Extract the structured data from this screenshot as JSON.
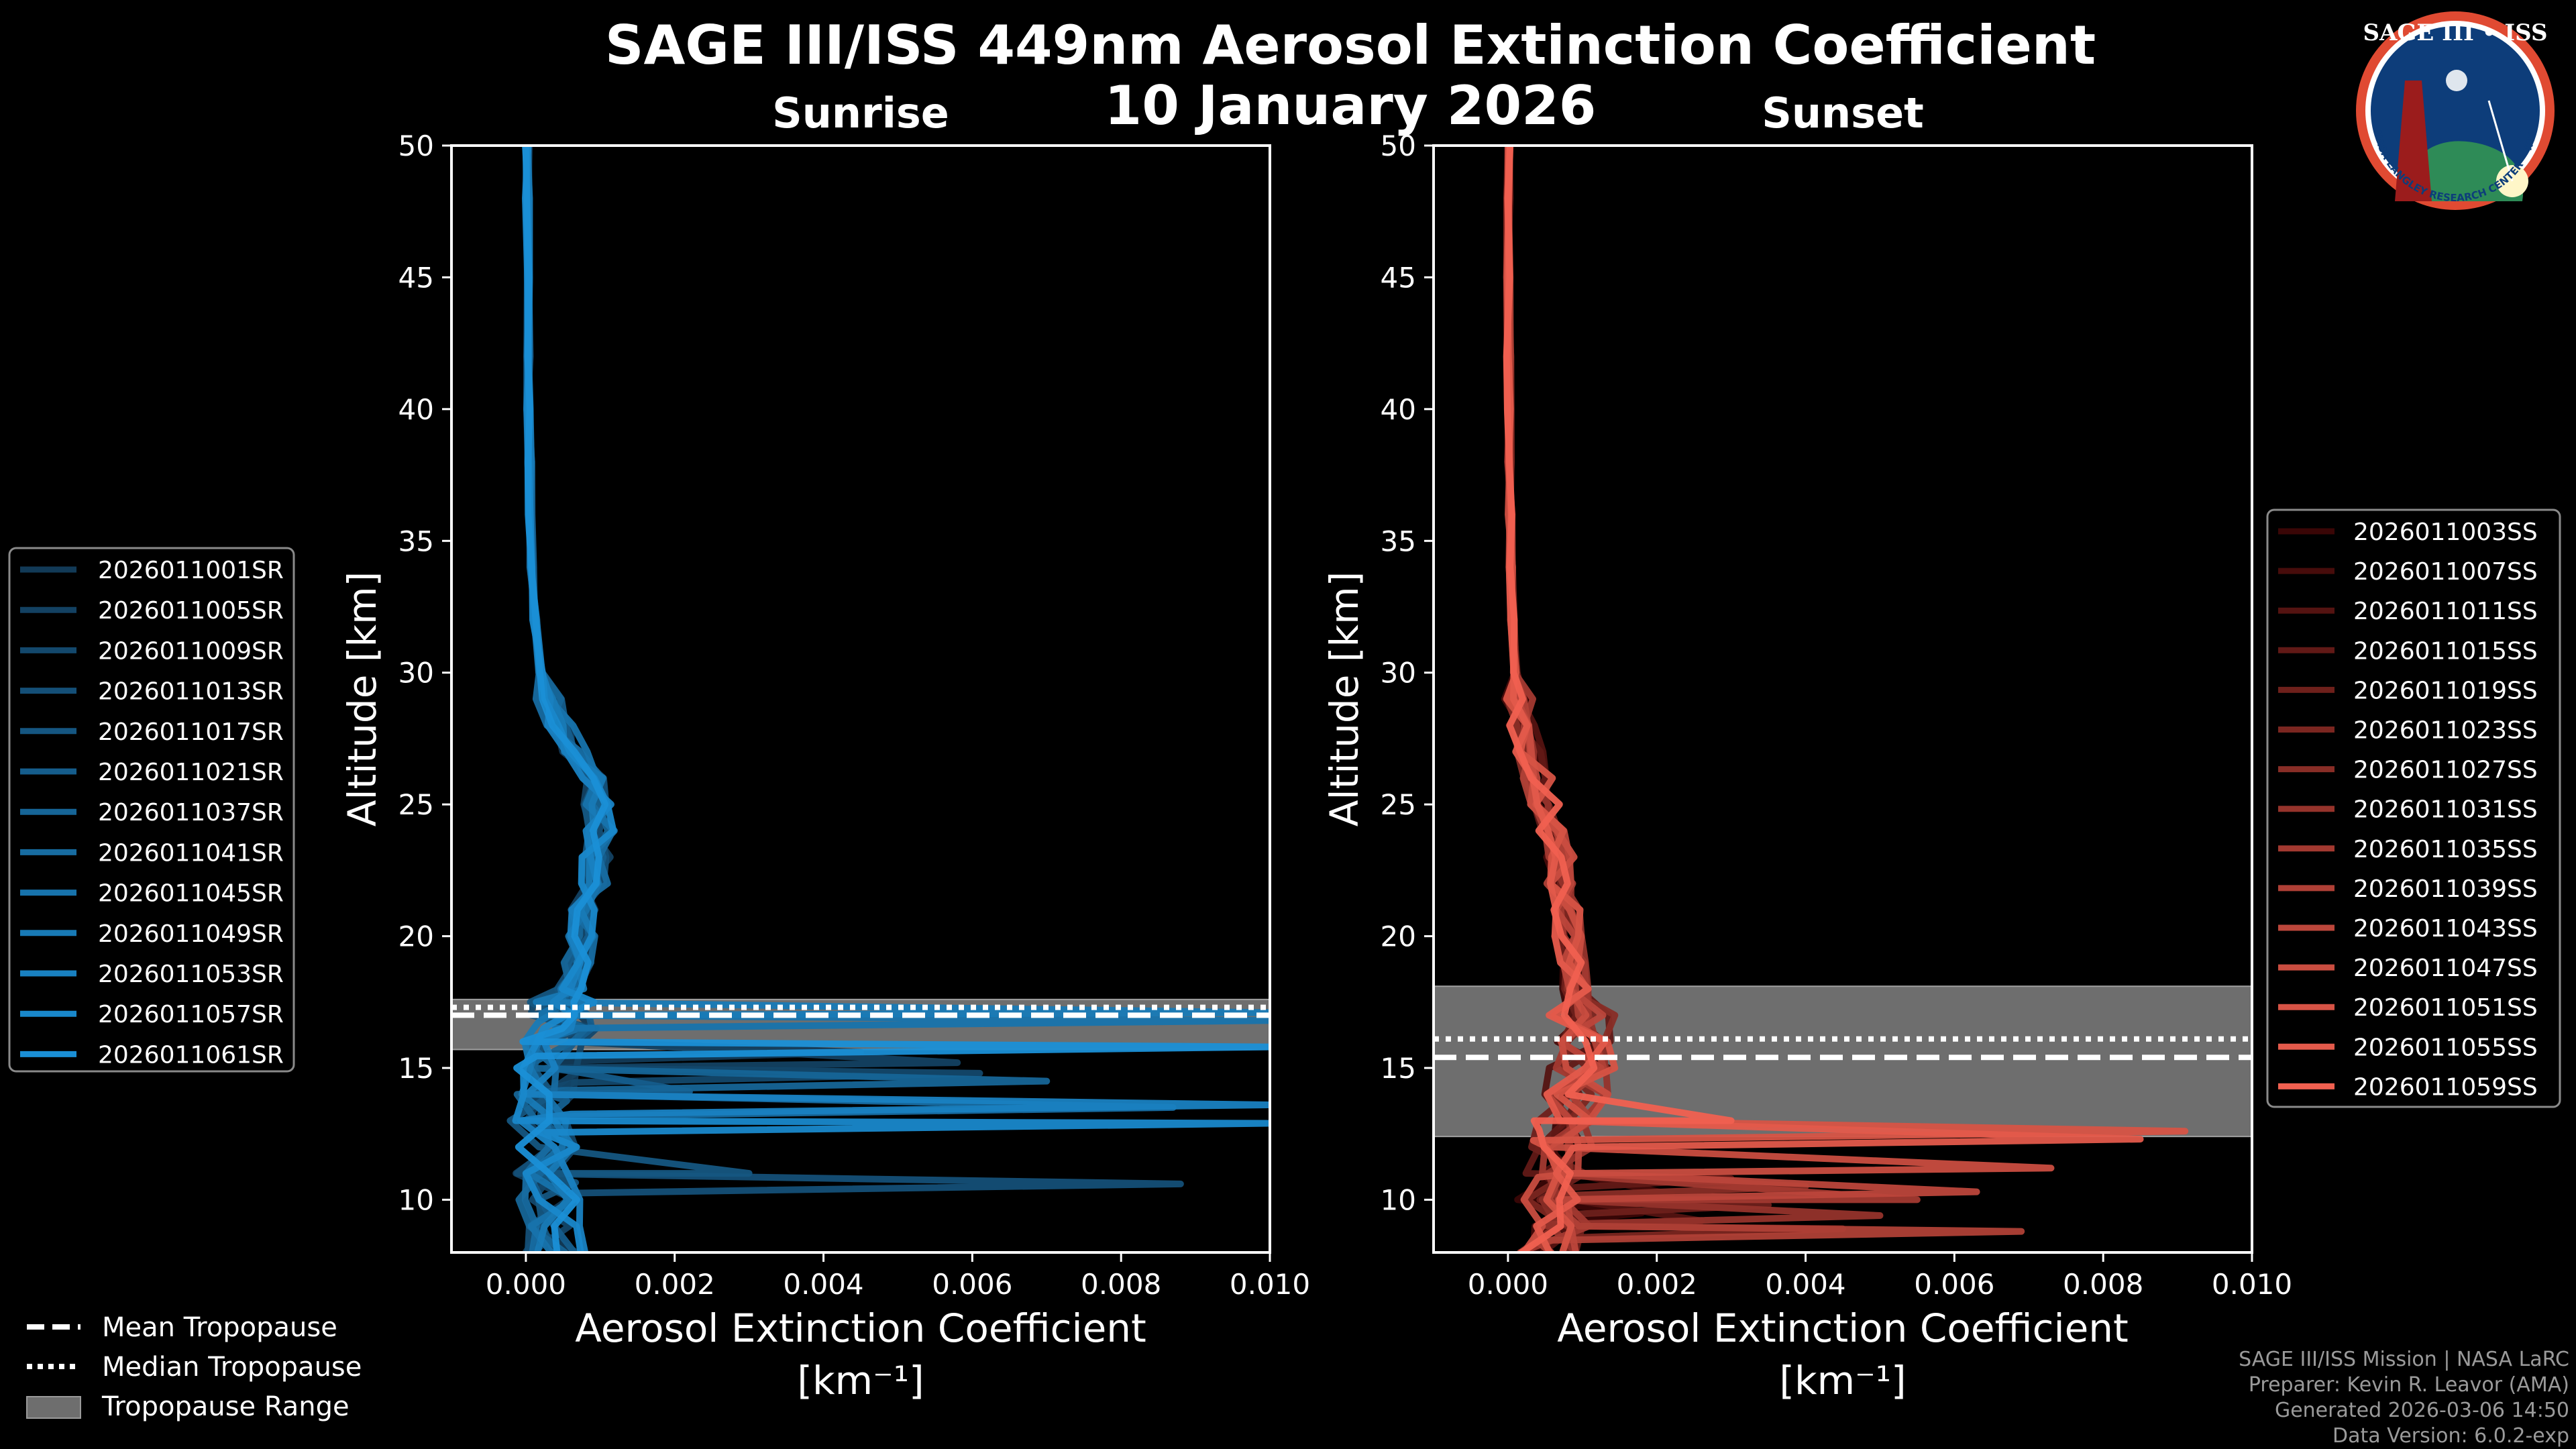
{
  "title": "SAGE III/ISS 449nm Aerosol Extinction Coefficient",
  "date": "10 January 2026",
  "logo": {
    "text": "SAGE III • ISS",
    "ring_text": "BALL • NASA LANGLEY RESEARCH CENTER • TAS-I • ESA",
    "colors": {
      "ring": "#e04a32",
      "field": "#0d3d7a",
      "earth": "#2e8b57"
    }
  },
  "footer": {
    "line1": "SAGE III/ISS Mission | NASA LaRC",
    "line2": "Preparer: Kevin R. Leavor (AMA)",
    "line3": "Generated 2026-03-06 14:50",
    "line4": "Data Version: 6.0.2-exp"
  },
  "tropopause_legend": {
    "mean": "Mean Tropopause",
    "median": "Median Tropopause",
    "range": "Tropopause Range"
  },
  "colors": {
    "sunrise_light": "#1a8fd6",
    "sunrise_dark": "#123a57",
    "sunset_light": "#f06050",
    "sunset_dark": "#3a0606",
    "band": "#6e6e6e"
  },
  "chart_data": [
    {
      "type": "line",
      "panel": "sunrise",
      "title": "Sunrise",
      "xlabel": "Aerosol Extinction Coefficient",
      "xunit": "[km⁻¹]",
      "ylabel": "Altitude [km]",
      "xlim": [
        -0.001,
        0.01
      ],
      "ylim": [
        8,
        50
      ],
      "xticks": [
        0.0,
        0.002,
        0.004,
        0.006,
        0.008,
        0.01
      ],
      "xtick_labels": [
        "0.000",
        "0.002",
        "0.004",
        "0.006",
        "0.008",
        "0.010"
      ],
      "yticks": [
        10,
        15,
        20,
        25,
        30,
        35,
        40,
        45,
        50
      ],
      "ytick_labels": [
        "10",
        "15",
        "20",
        "25",
        "30",
        "35",
        "40",
        "45",
        "50"
      ],
      "legend_position": "left",
      "tropopause": {
        "mean_km": 17.0,
        "median_km": 17.3,
        "range_km": [
          15.7,
          17.6
        ]
      },
      "base_profile": {
        "altitude_km": [
          8,
          9,
          10,
          11,
          12,
          13,
          14,
          15,
          16,
          16.5,
          17,
          17.5,
          18,
          19,
          20,
          21,
          22,
          23,
          24,
          25,
          26,
          27,
          28,
          29,
          30,
          32,
          34,
          36,
          38,
          40,
          42,
          45,
          48,
          50
        ],
        "extinction": [
          0.0004,
          0.0004,
          0.0003,
          0.0002,
          0.0003,
          0.0002,
          0.0002,
          0.0003,
          0.0004,
          0.0005,
          0.0005,
          0.0005,
          0.0006,
          0.0007,
          0.00075,
          0.0008,
          0.0009,
          0.00095,
          0.001,
          0.00095,
          0.00085,
          0.00065,
          0.00045,
          0.0003,
          0.0002,
          0.00012,
          8e-05,
          6e-05,
          5e-05,
          4e-05,
          4e-05,
          3e-05,
          2e-05,
          2e-05
        ]
      },
      "series": [
        {
          "name": "2026011001SR",
          "spike_km": 15.6,
          "spike_value": 0.0045
        },
        {
          "name": "2026011005SR",
          "spike_km": 15.2,
          "spike_value": 0.0058
        },
        {
          "name": "2026011009SR",
          "spike_km": 14.8,
          "spike_value": 0.0061
        },
        {
          "name": "2026011013SR",
          "spike_km": 10.6,
          "spike_value": 0.0088
        },
        {
          "name": "2026011017SR",
          "spike_km": 11.0,
          "spike_value": 0.003
        },
        {
          "name": "2026011021SR",
          "spike_km": 14.1,
          "spike_value": 0.0022
        },
        {
          "name": "2026011037SR",
          "spike_km": 14.5,
          "spike_value": 0.007
        },
        {
          "name": "2026011041SR",
          "spike_km": 13.5,
          "spike_value": 0.0087
        },
        {
          "name": "2026011045SR",
          "spike_km": 16.8,
          "spike_value": 0.01
        },
        {
          "name": "2026011049SR",
          "spike_km": 17.1,
          "spike_value": 0.01
        },
        {
          "name": "2026011053SR",
          "spike_km": 13.6,
          "spike_value": 0.01
        },
        {
          "name": "2026011057SR",
          "spike_km": 12.9,
          "spike_value": 0.01
        },
        {
          "name": "2026011061SR",
          "spike_km": 15.8,
          "spike_value": 0.01
        }
      ]
    },
    {
      "type": "line",
      "panel": "sunset",
      "title": "Sunset",
      "xlabel": "Aerosol Extinction Coefficient",
      "xunit": "[km⁻¹]",
      "ylabel": "Altitude [km]",
      "xlim": [
        -0.001,
        0.01
      ],
      "ylim": [
        8,
        50
      ],
      "xticks": [
        0.0,
        0.002,
        0.004,
        0.006,
        0.008,
        0.01
      ],
      "xtick_labels": [
        "0.000",
        "0.002",
        "0.004",
        "0.006",
        "0.008",
        "0.010"
      ],
      "yticks": [
        10,
        15,
        20,
        25,
        30,
        35,
        40,
        45,
        50
      ],
      "ytick_labels": [
        "10",
        "15",
        "20",
        "25",
        "30",
        "35",
        "40",
        "45",
        "50"
      ],
      "legend_position": "right",
      "tropopause": {
        "mean_km": 15.4,
        "median_km": 16.1,
        "range_km": [
          12.4,
          18.1
        ]
      },
      "base_profile": {
        "altitude_km": [
          8,
          9,
          10,
          11,
          12,
          13,
          14,
          15,
          16,
          17,
          18,
          19,
          20,
          21,
          22,
          23,
          24,
          25,
          26,
          27,
          28,
          29,
          30,
          32,
          34,
          36,
          38,
          40,
          42,
          45,
          48,
          50
        ],
        "extinction": [
          0.0006,
          0.0008,
          0.0005,
          0.0006,
          0.0007,
          0.0008,
          0.0009,
          0.001,
          0.0011,
          0.001,
          0.0009,
          0.0009,
          0.0008,
          0.0008,
          0.0007,
          0.0007,
          0.0006,
          0.0005,
          0.0004,
          0.0003,
          0.0002,
          0.00015,
          0.0001,
          6e-05,
          4e-05,
          3e-05,
          2e-05,
          2e-05,
          1e-05,
          1e-05,
          1e-05,
          1e-05
        ]
      },
      "series": [
        {
          "name": "2026011003SS",
          "spike_km": 9.5,
          "spike_value": 0.0018
        },
        {
          "name": "2026011007SS",
          "spike_km": 10.2,
          "spike_value": 0.0022
        },
        {
          "name": "2026011011SS",
          "spike_km": 9.2,
          "spike_value": 0.0026
        },
        {
          "name": "2026011015SS",
          "spike_km": 10.8,
          "spike_value": 0.003
        },
        {
          "name": "2026011019SS",
          "spike_km": 9.8,
          "spike_value": 0.0035
        },
        {
          "name": "2026011023SS",
          "spike_km": 8.9,
          "spike_value": 0.0045
        },
        {
          "name": "2026011027SS",
          "spike_km": 10.5,
          "spike_value": 0.004
        },
        {
          "name": "2026011031SS",
          "spike_km": 9.4,
          "spike_value": 0.005
        },
        {
          "name": "2026011035SS",
          "spike_km": 10.0,
          "spike_value": 0.0055
        },
        {
          "name": "2026011039SS",
          "spike_km": 8.8,
          "spike_value": 0.0069
        },
        {
          "name": "2026011043SS",
          "spike_km": 10.3,
          "spike_value": 0.0063
        },
        {
          "name": "2026011047SS",
          "spike_km": 11.2,
          "spike_value": 0.0073
        },
        {
          "name": "2026011051SS",
          "spike_km": 12.6,
          "spike_value": 0.0091
        },
        {
          "name": "2026011055SS",
          "spike_km": 12.3,
          "spike_value": 0.0085
        },
        {
          "name": "2026011059SS",
          "spike_km": 13.0,
          "spike_value": 0.003
        }
      ]
    }
  ]
}
